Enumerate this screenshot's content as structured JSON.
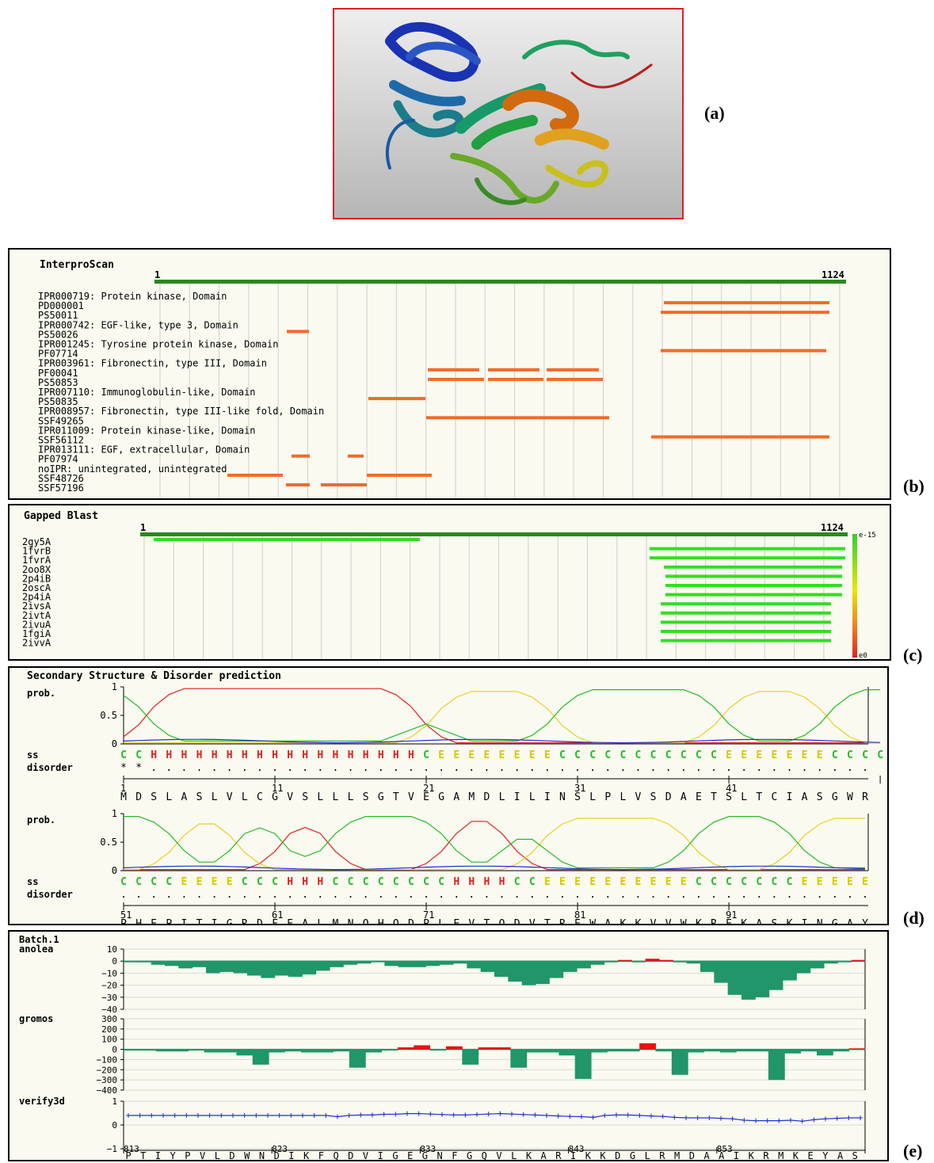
{
  "labels": {
    "a": "(a)",
    "b": "(b)",
    "c": "(c)",
    "d": "(d)",
    "e": "(e)"
  },
  "interpro": {
    "title": "InterproScan",
    "start": "1",
    "end": "1124",
    "rows": [
      {
        "text": "IPR000719: Protein kinase, Domain",
        "segs": []
      },
      {
        "text": "PD000001",
        "segs": [
          [
            836,
            1045
          ]
        ]
      },
      {
        "text": "PS50011",
        "segs": [
          [
            832,
            1045
          ]
        ]
      },
      {
        "text": "IPR000742: EGF-like, type 3, Domain",
        "segs": []
      },
      {
        "text": "PS50026",
        "segs": [
          [
            360,
            388
          ]
        ]
      },
      {
        "text": "IPR001245: Tyrosine protein kinase, Domain",
        "segs": []
      },
      {
        "text": "PF07714",
        "segs": [
          [
            832,
            1041
          ]
        ]
      },
      {
        "text": "IPR003961: Fibronectin, type III, Domain",
        "segs": []
      },
      {
        "text": "PF00041",
        "segs": [
          [
            538,
            603
          ],
          [
            614,
            679
          ],
          [
            688,
            754
          ]
        ]
      },
      {
        "text": "PS50853",
        "segs": [
          [
            538,
            609
          ],
          [
            614,
            684
          ],
          [
            688,
            759
          ]
        ]
      },
      {
        "text": "IPR007110: Immunoglobulin-like, Domain",
        "segs": []
      },
      {
        "text": "PS50835",
        "segs": [
          [
            463,
            535
          ]
        ]
      },
      {
        "text": "IPR008957: Fibronectin, type III-like fold, Domain",
        "segs": []
      },
      {
        "text": "SSF49265",
        "segs": [
          [
            536,
            767
          ]
        ]
      },
      {
        "text": "IPR011009: Protein kinase-like, Domain",
        "segs": []
      },
      {
        "text": "SSF56112",
        "segs": [
          [
            820,
            1045
          ]
        ]
      },
      {
        "text": "IPR013111: EGF, extracellular, Domain",
        "segs": []
      },
      {
        "text": "PF07974",
        "segs": [
          [
            366,
            389
          ],
          [
            437,
            457
          ]
        ]
      },
      {
        "text": "noIPR: unintegrated, unintegrated",
        "segs": []
      },
      {
        "text": "SSF48726",
        "segs": [
          [
            285,
            355
          ],
          [
            461,
            543
          ]
        ]
      },
      {
        "text": "SSF57196",
        "segs": [
          [
            359,
            389
          ],
          [
            403,
            461
          ]
        ]
      }
    ]
  },
  "blast": {
    "title": "Gapped Blast",
    "start": "1",
    "end": "1124",
    "scale_top": "e-15",
    "scale_bottom": "e0",
    "rows": [
      {
        "text": "2gy5A",
        "segs": [
          [
            192,
            528
          ]
        ]
      },
      {
        "text": "1fvrB",
        "segs": [
          [
            818,
            1065
          ]
        ]
      },
      {
        "text": "1fvrA",
        "segs": [
          [
            818,
            1065
          ]
        ]
      },
      {
        "text": "2oo8X",
        "segs": [
          [
            836,
            1061
          ]
        ]
      },
      {
        "text": "2p4iB",
        "segs": [
          [
            838,
            1061
          ]
        ]
      },
      {
        "text": "2oscA",
        "segs": [
          [
            838,
            1061
          ]
        ]
      },
      {
        "text": "2p4iA",
        "segs": [
          [
            838,
            1061
          ]
        ]
      },
      {
        "text": "2ivsA",
        "segs": [
          [
            832,
            1047
          ]
        ]
      },
      {
        "text": "2ivtA",
        "segs": [
          [
            832,
            1047
          ]
        ]
      },
      {
        "text": "2ivuA",
        "segs": [
          [
            832,
            1047
          ]
        ]
      },
      {
        "text": "1fgiA",
        "segs": [
          [
            832,
            1047
          ]
        ]
      },
      {
        "text": "2ivvA",
        "segs": [
          [
            832,
            1047
          ]
        ]
      }
    ]
  },
  "ss": {
    "title": "Secondary Structure & Disorder prediction",
    "prob_label": "prob.",
    "ss_label": "ss",
    "disorder_label": "disorder",
    "yticks": [
      "1",
      "0.5",
      "0"
    ],
    "block1": {
      "ss": "CCHHHHHHHHHHHHHHHHHHCEEEEEEEECCCCCCCCCCCEEEEEEECCCC",
      "disorder": "**................................................",
      "seq": "MDSLASLVLCGVSLLLSGTVEGAMDLILINSLPLVSDAETSLTCIASGWR",
      "nums": [
        "1",
        "11",
        "21",
        "31",
        "41"
      ]
    },
    "block2": {
      "ss": "CCCCEEEECCCHHHCCCCCCCCHHHHCCEEEEEEEEEECCCCCCCEEEEE",
      "disorder": "..................................................",
      "seq": "PHEPITIGRDFEALMNQHQDPLEVTQDVTREWAKKVVWKREKASKINGAY",
      "nums": [
        "51",
        "61",
        "71",
        "81",
        "91"
      ]
    }
  },
  "batch": {
    "title": "Batch.1",
    "anolea_label": "anolea",
    "gromos_label": "gromos",
    "verify_label": "verify3d",
    "anolea_ticks": [
      "10",
      "0",
      "−10",
      "−20",
      "−30",
      "−40"
    ],
    "gromos_ticks": [
      "300",
      "200",
      "100",
      "0",
      "−100",
      "−200",
      "−300",
      "−400"
    ],
    "verify_ticks": [
      "1",
      "0",
      "−1"
    ],
    "anolea": [
      0,
      -1,
      -3,
      -4,
      -6,
      -5,
      -10,
      -9,
      -10,
      -12,
      -14,
      -12,
      -13,
      -11,
      -8,
      -5,
      -3,
      -2,
      0,
      -4,
      -5,
      -5,
      -4,
      -3,
      -2,
      -6,
      -9,
      -13,
      -17,
      -20,
      -19,
      -14,
      -9,
      -6,
      -3,
      -1,
      1,
      -1,
      2,
      1,
      -1,
      -2,
      -9,
      -18,
      -28,
      -32,
      -30,
      -24,
      -16,
      -10,
      -6,
      -2,
      0,
      1
    ],
    "gromos": [
      -10,
      -10,
      -20,
      -20,
      -10,
      -30,
      -30,
      -60,
      -150,
      -30,
      -20,
      -30,
      -30,
      -20,
      -180,
      -30,
      -10,
      20,
      40,
      -10,
      30,
      -150,
      20,
      20,
      -180,
      -30,
      -30,
      -60,
      -290,
      -30,
      -20,
      -20,
      60,
      -20,
      -250,
      -30,
      -20,
      -30,
      -20,
      -20,
      -300,
      -40,
      -20,
      -60,
      -20,
      10
    ],
    "verify": [
      0.4,
      0.4,
      0.4,
      0.4,
      0.4,
      0.4,
      0.4,
      0.4,
      0.4,
      0.4,
      0.4,
      0.4,
      0.4,
      0.4,
      0.4,
      0.4,
      0.4,
      0.4,
      0.35,
      0.4,
      0.42,
      0.42,
      0.45,
      0.45,
      0.48,
      0.48,
      0.46,
      0.44,
      0.42,
      0.42,
      0.44,
      0.46,
      0.48,
      0.46,
      0.44,
      0.42,
      0.4,
      0.38,
      0.36,
      0.35,
      0.32,
      0.4,
      0.42,
      0.42,
      0.4,
      0.38,
      0.36,
      0.32,
      0.3,
      0.3,
      0.3,
      0.28,
      0.26,
      0.2,
      0.18,
      0.18,
      0.18,
      0.2,
      0.16,
      0.22,
      0.26,
      0.28,
      0.3,
      0.3
    ],
    "seq": "PTIYPVLDWNDIKFQDVIGEGNFGQVLKARIKKDGLRMDAAIKRMKEYAS",
    "nums": [
      "813",
      "823",
      "833",
      "843",
      "853"
    ]
  }
}
